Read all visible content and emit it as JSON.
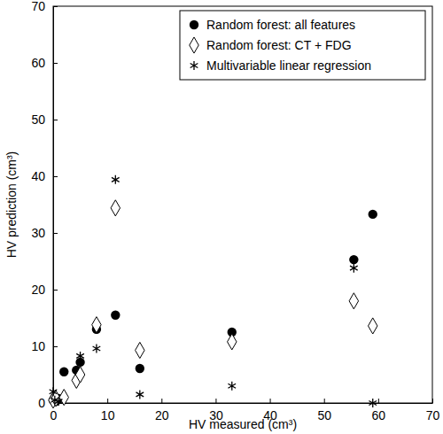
{
  "chart_data": {
    "type": "scatter",
    "x_label": "HV measured (cm³)",
    "y_label": "HV prediction (cm³)",
    "xlim": [
      0,
      70
    ],
    "xticks": [
      0,
      10,
      20,
      30,
      40,
      50,
      60,
      70
    ],
    "ylim": [
      0,
      70
    ],
    "yticks": [
      0,
      10,
      20,
      30,
      40,
      50,
      60,
      70
    ],
    "grid": false,
    "legend": "top-right",
    "series": [
      {
        "name": "Random forest: all features",
        "color": "#000000",
        "marker": "circle",
        "x": [
          0,
          0.3,
          0.5,
          1,
          2,
          4.3,
          5,
          8,
          11.5,
          16,
          33,
          55.5,
          59
        ],
        "values": [
          0.5,
          1,
          0.3,
          0.8,
          5.5,
          5.8,
          7.2,
          13,
          15.5,
          6.1,
          12.5,
          25.3,
          33.3
        ]
      },
      {
        "name": "Random forest: CT + FDG",
        "color": "#000000",
        "marker": "diamond",
        "x": [
          0,
          0.5,
          2,
          4.3,
          5,
          8,
          11.5,
          16,
          33,
          55.5,
          59
        ],
        "values": [
          0.5,
          0.8,
          1,
          4,
          5,
          13.8,
          34.4,
          9.3,
          10.8,
          18,
          13.6
        ]
      },
      {
        "name": "Multivariable linear regression",
        "color": "#000000",
        "marker": "asterisk",
        "x": [
          0,
          0.3,
          1,
          5,
          8,
          11.5,
          16,
          33,
          55.5,
          59
        ],
        "values": [
          2,
          0.5,
          0.3,
          8.3,
          9.6,
          39.4,
          1.5,
          3,
          23.8,
          0
        ]
      }
    ]
  }
}
